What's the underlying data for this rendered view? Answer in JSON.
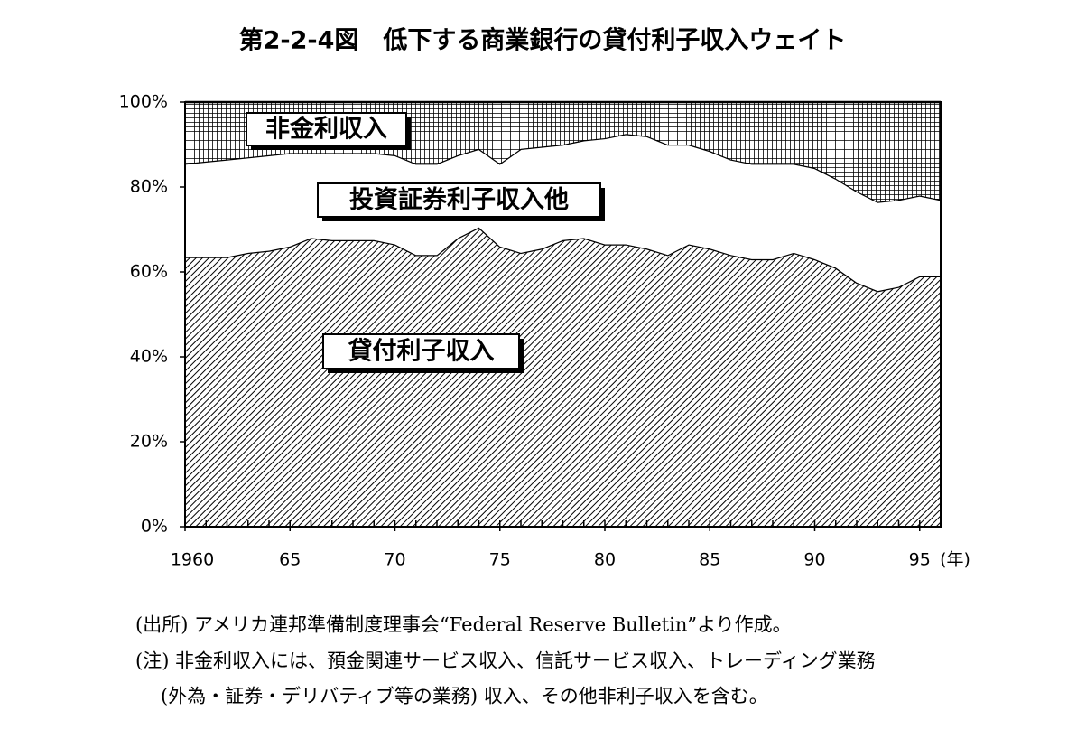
{
  "chart_data": {
    "type": "stacked-area",
    "title": "第2-2-4図　低下する商業銀行の貸付利子収入ウェイト",
    "x_unit": "(年)",
    "x": [
      1960,
      1961,
      1962,
      1963,
      1964,
      1965,
      1966,
      1967,
      1968,
      1969,
      1970,
      1971,
      1972,
      1973,
      1974,
      1975,
      1976,
      1977,
      1978,
      1979,
      1980,
      1981,
      1982,
      1983,
      1984,
      1985,
      1986,
      1987,
      1988,
      1989,
      1990,
      1991,
      1992,
      1993,
      1994,
      1995,
      1996
    ],
    "series": [
      {
        "name": "貸付利子収入",
        "color": "#000000",
        "pattern": "diagonal",
        "values": [
          63.5,
          63.5,
          63.5,
          64.5,
          65,
          66,
          68,
          67.5,
          67.5,
          67.5,
          66.5,
          64,
          64,
          68,
          70.5,
          66,
          64.5,
          65.5,
          67.5,
          68,
          66.5,
          66.5,
          65.5,
          64,
          66.5,
          65.5,
          64,
          63,
          63,
          64.5,
          63,
          61,
          57.5,
          55.5,
          56.5,
          59,
          59
        ]
      },
      {
        "name": "投資証券利子収入他",
        "color": "#ffffff",
        "pattern": "none",
        "values": [
          22,
          22.5,
          23,
          22.5,
          22.5,
          22,
          20,
          20.5,
          20.5,
          20.5,
          21,
          21.5,
          21.5,
          19.5,
          18.5,
          19.5,
          24.5,
          24,
          22.5,
          23,
          25,
          26,
          26.5,
          26,
          23.5,
          23,
          22.5,
          22.5,
          22.5,
          21,
          21.5,
          21,
          21.5,
          21,
          20.5,
          19,
          18
        ]
      },
      {
        "name": "非金利収入",
        "color": "#000000",
        "pattern": "grid",
        "values": [
          14.5,
          14,
          13.5,
          13,
          12.5,
          12,
          12,
          12,
          12,
          12,
          12.5,
          14.5,
          14.5,
          12.5,
          11,
          14.5,
          11,
          10.5,
          10,
          9,
          8.5,
          7.5,
          8,
          10,
          10,
          11.5,
          13.5,
          14.5,
          14.5,
          14.5,
          15.5,
          18,
          21,
          23.5,
          23,
          22,
          23
        ]
      }
    ],
    "xlim": [
      1960,
      1996
    ],
    "xticks": [
      1960,
      {
        "value": 1965,
        "label": "65"
      },
      {
        "value": 1970,
        "label": "70"
      },
      {
        "value": 1975,
        "label": "75"
      },
      {
        "value": 1980,
        "label": "80"
      },
      {
        "value": 1985,
        "label": "85"
      },
      {
        "value": 1990,
        "label": "90"
      },
      {
        "value": 1995,
        "label": "95"
      }
    ],
    "ylim": [
      0,
      100
    ],
    "yticks": [
      {
        "value": 0,
        "label": "0%"
      },
      {
        "value": 20,
        "label": "20%"
      },
      {
        "value": 40,
        "label": "40%"
      },
      {
        "value": 60,
        "label": "60%"
      },
      {
        "value": 80,
        "label": "80%"
      },
      {
        "value": 100,
        "label": "100%"
      }
    ],
    "notes": [
      "(出所) アメリカ連邦準備制度理事会“Federal Reserve Bulletin”より作成。",
      "(注) 非金利収入には、預金関連サービス収入、信託サービス収入、トレーディング業務",
      "(外為・証券・デリバティブ等の業務) 収入、その他非利子収入を含む。"
    ]
  }
}
